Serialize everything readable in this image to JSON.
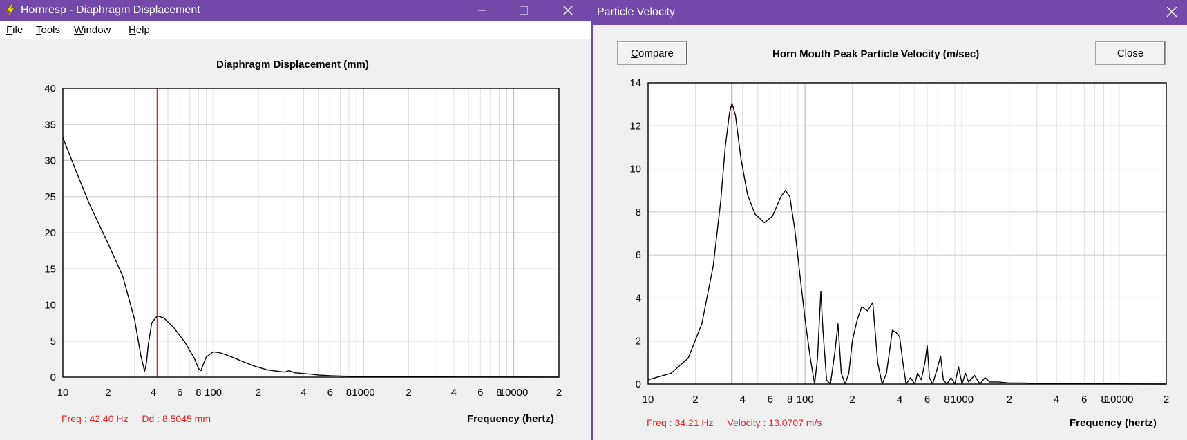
{
  "left_window": {
    "title": "Hornresp - Diaphragm Displacement",
    "menu": [
      {
        "label": "File",
        "accel": "F",
        "rest": "ile"
      },
      {
        "label": "Tools",
        "accel": "T",
        "rest": "ools"
      },
      {
        "label": "Window",
        "accel": "W",
        "rest": "indow"
      },
      {
        "label": "Help",
        "accel": "H",
        "rest": "elp"
      }
    ],
    "readout": {
      "freq": "Freq : 42.40 Hz",
      "value": "Dd : 8.5045 mm"
    }
  },
  "right_window": {
    "title": "Particle Velocity",
    "compare_label": "Compare",
    "close_label": "Close",
    "readout": {
      "freq": "Freq : 34.21 Hz",
      "value": "Velocity : 13.0707 m/s"
    }
  },
  "chart_data": [
    {
      "type": "line",
      "title": "Diaphragm Displacement (mm)",
      "xlabel": "Frequency (hertz)",
      "ylabel": "",
      "x_scale": "log",
      "xlim": [
        10,
        20000
      ],
      "ylim": [
        0,
        40
      ],
      "y_ticks": [
        "0",
        "5",
        "10",
        "15",
        "20",
        "25",
        "30",
        "35",
        "40"
      ],
      "x_tick_labels": [
        {
          "x": 10,
          "label": "10"
        },
        {
          "x": 20,
          "label": "2"
        },
        {
          "x": 40,
          "label": "4"
        },
        {
          "x": 60,
          "label": "6"
        },
        {
          "x": 80,
          "label": "8"
        },
        {
          "x": 100,
          "label": "100"
        },
        {
          "x": 200,
          "label": "2"
        },
        {
          "x": 400,
          "label": "4"
        },
        {
          "x": 600,
          "label": "6"
        },
        {
          "x": 800,
          "label": "8"
        },
        {
          "x": 1000,
          "label": "1000"
        },
        {
          "x": 2000,
          "label": "2"
        },
        {
          "x": 4000,
          "label": "4"
        },
        {
          "x": 6000,
          "label": "6"
        },
        {
          "x": 8000,
          "label": "8"
        },
        {
          "x": 10000,
          "label": "10000"
        },
        {
          "x": 20000,
          "label": "2"
        }
      ],
      "grid": true,
      "cursor_x": 42.4,
      "color_line": "#000000",
      "color_cursor": "#e8201e",
      "series": [
        {
          "x": [
            10,
            12,
            15,
            20,
            25,
            30,
            33,
            35,
            36,
            37,
            39,
            42.4,
            47,
            55,
            65,
            75,
            80,
            83,
            86,
            90,
            100,
            110,
            125,
            140,
            160,
            190,
            230,
            270,
            300,
            320,
            350,
            400,
            450,
            500,
            600,
            700,
            900,
            1200,
            2000,
            5000,
            20000
          ],
          "y": [
            33.2,
            29,
            24,
            18.5,
            14,
            8,
            3,
            0.8,
            2,
            4.5,
            7.5,
            8.5,
            8.2,
            6.8,
            4.8,
            2.6,
            1.2,
            0.9,
            1.8,
            2.8,
            3.5,
            3.4,
            3.0,
            2.6,
            2.1,
            1.5,
            1.0,
            0.8,
            0.7,
            0.9,
            0.6,
            0.5,
            0.4,
            0.3,
            0.2,
            0.15,
            0.1,
            0.05,
            0.03,
            0.02,
            0.01
          ]
        }
      ]
    },
    {
      "type": "line",
      "title": "Horn Mouth Peak Particle Velocity (m/sec)",
      "xlabel": "Frequency (hertz)",
      "ylabel": "",
      "x_scale": "log",
      "xlim": [
        10,
        20000
      ],
      "ylim": [
        0,
        14
      ],
      "y_ticks": [
        "0",
        "2",
        "4",
        "6",
        "8",
        "10",
        "12",
        "14"
      ],
      "x_tick_labels": [
        {
          "x": 10,
          "label": "10"
        },
        {
          "x": 20,
          "label": "2"
        },
        {
          "x": 40,
          "label": "4"
        },
        {
          "x": 60,
          "label": "6"
        },
        {
          "x": 80,
          "label": "8"
        },
        {
          "x": 100,
          "label": "100"
        },
        {
          "x": 200,
          "label": "2"
        },
        {
          "x": 400,
          "label": "4"
        },
        {
          "x": 600,
          "label": "6"
        },
        {
          "x": 800,
          "label": "8"
        },
        {
          "x": 1000,
          "label": "1000"
        },
        {
          "x": 2000,
          "label": "2"
        },
        {
          "x": 4000,
          "label": "4"
        },
        {
          "x": 6000,
          "label": "6"
        },
        {
          "x": 8000,
          "label": "8"
        },
        {
          "x": 10000,
          "label": "10000"
        },
        {
          "x": 20000,
          "label": "2"
        }
      ],
      "grid": true,
      "cursor_x": 34.21,
      "color_line": "#000000",
      "color_cursor": "#e8201e",
      "series": [
        {
          "x": [
            10,
            14,
            18,
            22,
            26,
            29,
            31,
            33,
            34.2,
            36,
            39,
            43,
            48,
            55,
            62,
            70,
            75,
            80,
            86,
            93,
            100,
            108,
            115,
            120,
            126,
            130,
            137,
            145,
            155,
            162,
            170,
            180,
            190,
            200,
            215,
            230,
            250,
            270,
            290,
            310,
            330,
            360,
            380,
            400,
            420,
            440,
            470,
            500,
            520,
            550,
            580,
            600,
            620,
            650,
            700,
            730,
            760,
            800,
            850,
            900,
            950,
            1000,
            1050,
            1100,
            1200,
            1300,
            1400,
            1500,
            1700,
            2000,
            2500,
            3000,
            20000
          ],
          "y": [
            0.2,
            0.5,
            1.2,
            2.8,
            5.5,
            8.5,
            11,
            12.6,
            13.07,
            12.5,
            10.5,
            8.8,
            7.9,
            7.5,
            7.8,
            8.7,
            9.0,
            8.7,
            7.2,
            5.0,
            3.0,
            1.2,
            0.0,
            1.2,
            4.3,
            2.5,
            0.2,
            0.0,
            1.5,
            2.8,
            0.5,
            0.0,
            0.5,
            2.0,
            3.0,
            3.6,
            3.4,
            3.8,
            1.0,
            0.0,
            0.5,
            2.5,
            2.4,
            2.2,
            1.0,
            0.0,
            0.3,
            0.0,
            0.5,
            0.2,
            1.0,
            1.8,
            0.3,
            0.0,
            0.8,
            1.3,
            0.2,
            0.0,
            0.3,
            0.0,
            0.8,
            0.0,
            0.5,
            0.1,
            0.4,
            0.0,
            0.3,
            0.1,
            0.1,
            0.05,
            0.05,
            0.02,
            0.0
          ]
        }
      ]
    }
  ]
}
